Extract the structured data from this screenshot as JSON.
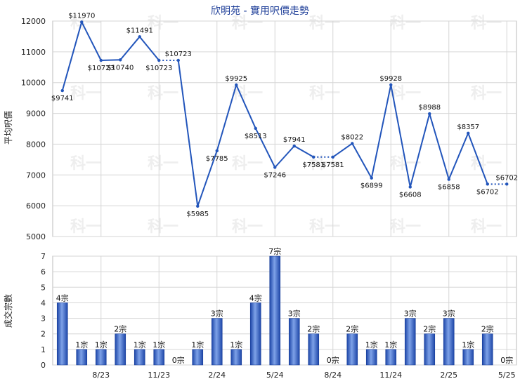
{
  "title": "欣明苑 - 實用呎價走勢",
  "watermark": "科一",
  "colors": {
    "line": "#2255bb",
    "bar": "#2f5fc4",
    "grid": "#d6d6d6",
    "title": "#1f3f99"
  },
  "chart_data": [
    {
      "type": "line",
      "ylabel": "平均呎價",
      "ylim": [
        5000,
        12000
      ],
      "yticks": [
        "5000",
        "6000",
        "7000",
        "8000",
        "9000",
        "10000",
        "11000",
        "12000"
      ],
      "xtick_labels": [
        "8/23",
        "11/23",
        "2/24",
        "5/24",
        "8/24",
        "11/24",
        "2/25",
        "5/25"
      ],
      "x": [
        "6/23",
        "7/23",
        "8/23",
        "9/23",
        "10/23",
        "11/23",
        "12/23",
        "1/24",
        "2/24",
        "3/24",
        "4/24",
        "5/24",
        "6/24",
        "7/24",
        "8/24",
        "9/24",
        "10/24",
        "11/24",
        "12/24",
        "1/25",
        "2/25",
        "3/25",
        "4/25",
        "5/25"
      ],
      "values": [
        9741,
        11970,
        10723,
        10740,
        11491,
        10723,
        10723,
        5985,
        7785,
        9925,
        8513,
        7246,
        7941,
        7581,
        7581,
        8022,
        6899,
        9928,
        6608,
        8988,
        6858,
        8357,
        6702,
        6702
      ],
      "data_labels": [
        "$9741",
        "$11970",
        "$10723",
        "$10740",
        "$11491",
        "$10723",
        "$10723",
        "$5985",
        "$7785",
        "$9925",
        "$8513",
        "$7246",
        "$7941",
        "$7581",
        "$7581",
        "$8022",
        "$6899",
        "$9928",
        "$6608",
        "$8988",
        "$6858",
        "$8357",
        "$6702",
        "$6702"
      ],
      "carried_forward": [
        false,
        false,
        false,
        false,
        false,
        false,
        true,
        false,
        false,
        false,
        false,
        false,
        false,
        false,
        true,
        false,
        false,
        false,
        false,
        false,
        false,
        false,
        false,
        true
      ]
    },
    {
      "type": "bar",
      "ylabel": "成交宗數",
      "ylim": [
        0,
        7
      ],
      "yticks": [
        "0",
        "1",
        "2",
        "3",
        "4",
        "5",
        "6",
        "7"
      ],
      "xtick_labels": [
        "8/23",
        "11/23",
        "2/24",
        "5/24",
        "8/24",
        "11/24",
        "2/25",
        "5/25"
      ],
      "x": [
        "6/23",
        "7/23",
        "8/23",
        "9/23",
        "10/23",
        "11/23",
        "12/23",
        "1/24",
        "2/24",
        "3/24",
        "4/24",
        "5/24",
        "6/24",
        "7/24",
        "8/24",
        "9/24",
        "10/24",
        "11/24",
        "12/24",
        "1/25",
        "2/25",
        "3/25",
        "4/25",
        "5/25"
      ],
      "values": [
        4,
        1,
        1,
        2,
        1,
        1,
        0,
        1,
        3,
        1,
        4,
        7,
        3,
        2,
        0,
        2,
        1,
        1,
        3,
        2,
        3,
        1,
        2,
        0
      ],
      "data_labels": [
        "4宗",
        "1宗",
        "1宗",
        "2宗",
        "1宗",
        "1宗",
        "0宗",
        "1宗",
        "3宗",
        "1宗",
        "4宗",
        "7宗",
        "3宗",
        "2宗",
        "0宗",
        "2宗",
        "1宗",
        "1宗",
        "3宗",
        "2宗",
        "3宗",
        "1宗",
        "2宗",
        "0宗"
      ]
    }
  ]
}
